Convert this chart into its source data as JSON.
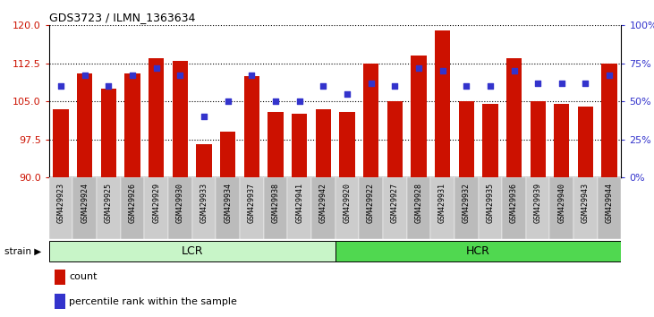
{
  "title": "GDS3723 / ILMN_1363634",
  "samples": [
    "GSM429923",
    "GSM429924",
    "GSM429925",
    "GSM429926",
    "GSM429929",
    "GSM429930",
    "GSM429933",
    "GSM429934",
    "GSM429937",
    "GSM429938",
    "GSM429941",
    "GSM429942",
    "GSM429920",
    "GSM429922",
    "GSM429927",
    "GSM429928",
    "GSM429931",
    "GSM429932",
    "GSM429935",
    "GSM429936",
    "GSM429939",
    "GSM429940",
    "GSM429943",
    "GSM429944"
  ],
  "bar_values": [
    103.5,
    110.5,
    107.5,
    110.5,
    113.5,
    113.0,
    96.5,
    99.0,
    110.0,
    103.0,
    102.5,
    103.5,
    103.0,
    112.5,
    105.0,
    114.0,
    119.0,
    105.0,
    104.5,
    113.5,
    105.0,
    104.5,
    104.0,
    112.5
  ],
  "dot_percentiles": [
    60,
    67,
    60,
    67,
    72,
    67,
    40,
    50,
    67,
    50,
    50,
    60,
    55,
    62,
    60,
    72,
    70,
    60,
    60,
    70,
    62,
    62,
    62,
    67
  ],
  "groups": [
    {
      "label": "LCR",
      "start": 0,
      "end": 11,
      "color": "#c8f5c8"
    },
    {
      "label": "HCR",
      "start": 12,
      "end": 23,
      "color": "#50d850"
    }
  ],
  "ylim_left": [
    90,
    120
  ],
  "ylim_right": [
    0,
    100
  ],
  "yticks_left": [
    90,
    97.5,
    105,
    112.5,
    120
  ],
  "yticks_right": [
    0,
    25,
    50,
    75,
    100
  ],
  "bar_color": "#cc1100",
  "dot_color": "#3333cc",
  "bar_width": 0.65,
  "legend_count_label": "count",
  "legend_pct_label": "percentile rank within the sample",
  "strain_label": "strain",
  "background_color": "#ffffff",
  "tick_label_color_left": "#cc1100",
  "tick_label_color_right": "#3333cc",
  "tick_bg_color": "#cccccc"
}
